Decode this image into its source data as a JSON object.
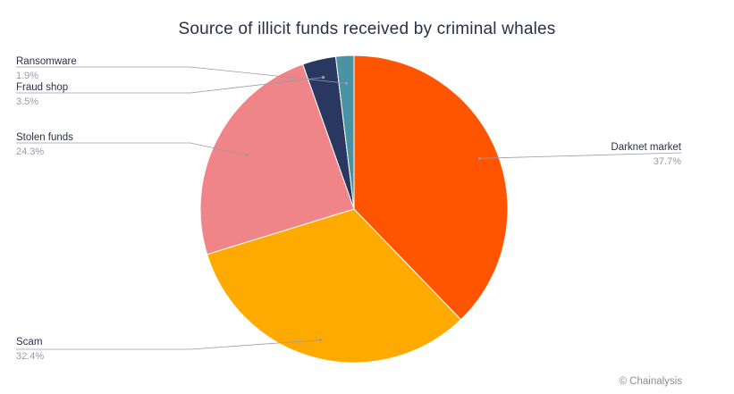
{
  "header": {
    "title": "Source of illicit funds received by criminal whales"
  },
  "footer": {
    "credit": "© Chainalysis"
  },
  "chart_data": {
    "type": "pie",
    "title": "Source of illicit funds received by criminal whales",
    "slices": [
      {
        "label": "Darknet market",
        "value": 37.7,
        "value_label": "37.7%",
        "color": "#ff5500"
      },
      {
        "label": "Scam",
        "value": 32.4,
        "value_label": "32.4%",
        "color": "#ffaa00"
      },
      {
        "label": "Stolen funds",
        "value": 24.3,
        "value_label": "24.3%",
        "color": "#f08589"
      },
      {
        "label": "Fraud shop",
        "value": 3.5,
        "value_label": "3.5%",
        "color": "#283860"
      },
      {
        "label": "Ransomware",
        "value": 1.9,
        "value_label": "1.9%",
        "color": "#4a93a4"
      }
    ],
    "start": "12 o'clock",
    "direction": "clockwise",
    "legend": "none (callout labels)"
  }
}
